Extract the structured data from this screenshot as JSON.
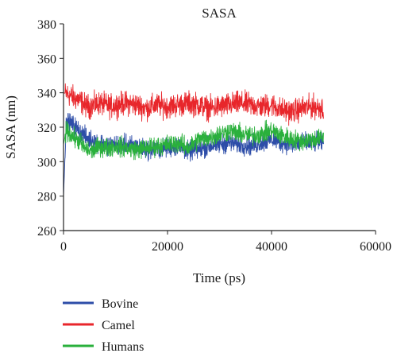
{
  "chart_data": {
    "type": "line",
    "title": "SASA",
    "xlabel": "Time (ps)",
    "ylabel": "SASA (nm)",
    "xlim": [
      0,
      60000
    ],
    "ylim": [
      260,
      380
    ],
    "xticks": [
      0,
      20000,
      40000,
      60000
    ],
    "yticks": [
      260,
      280,
      300,
      320,
      340,
      360,
      380
    ],
    "xtick_labels": [
      "0",
      "20000",
      "40000",
      "60000"
    ],
    "ytick_labels": [
      "260",
      "280",
      "300",
      "320",
      "340",
      "360",
      "380"
    ],
    "grid": false,
    "legend_position": "bottom-left",
    "series": [
      {
        "name": "Camel",
        "color": "#e8262b",
        "x": [
          0,
          1000,
          2000,
          3000,
          4000,
          5000,
          6000,
          7000,
          8000,
          9000,
          10000,
          12000,
          14000,
          16000,
          18000,
          20000,
          22000,
          24000,
          26000,
          28000,
          30000,
          32000,
          34000,
          36000,
          38000,
          40000,
          42000,
          44000,
          46000,
          48000,
          50000
        ],
        "values": [
          340,
          339,
          337,
          336,
          333,
          332,
          333,
          334,
          333,
          332,
          333,
          334,
          333,
          331,
          333,
          332,
          333,
          334,
          333,
          331,
          332,
          333,
          334,
          333,
          332,
          333,
          330,
          329,
          331,
          332,
          331
        ]
      },
      {
        "name": "Bovine",
        "color": "#2d4da8",
        "x": [
          0,
          500,
          1000,
          2000,
          3000,
          4000,
          5000,
          6000,
          7000,
          8000,
          10000,
          12000,
          14000,
          16000,
          18000,
          20000,
          22000,
          24000,
          26000,
          28000,
          30000,
          32000,
          34000,
          36000,
          38000,
          40000,
          42000,
          44000,
          46000,
          48000,
          50000
        ],
        "values": [
          280,
          320,
          323,
          321,
          318,
          315,
          313,
          312,
          311,
          310,
          310,
          310,
          309,
          307,
          307,
          308,
          309,
          306,
          307,
          309,
          310,
          311,
          310,
          309,
          311,
          313,
          311,
          310,
          311,
          311,
          311
        ]
      },
      {
        "name": "Humans",
        "color": "#2ab03c",
        "x": [
          0,
          500,
          1000,
          2000,
          3000,
          4000,
          5000,
          6000,
          7000,
          8000,
          10000,
          12000,
          14000,
          16000,
          18000,
          20000,
          22000,
          24000,
          26000,
          28000,
          30000,
          32000,
          34000,
          36000,
          38000,
          40000,
          42000,
          44000,
          46000,
          48000,
          50000
        ],
        "values": [
          310,
          318,
          317,
          314,
          312,
          308,
          306,
          307,
          309,
          308,
          309,
          308,
          307,
          308,
          309,
          310,
          311,
          308,
          313,
          314,
          316,
          318,
          316,
          315,
          316,
          318,
          315,
          313,
          312,
          313,
          314
        ]
      }
    ]
  }
}
